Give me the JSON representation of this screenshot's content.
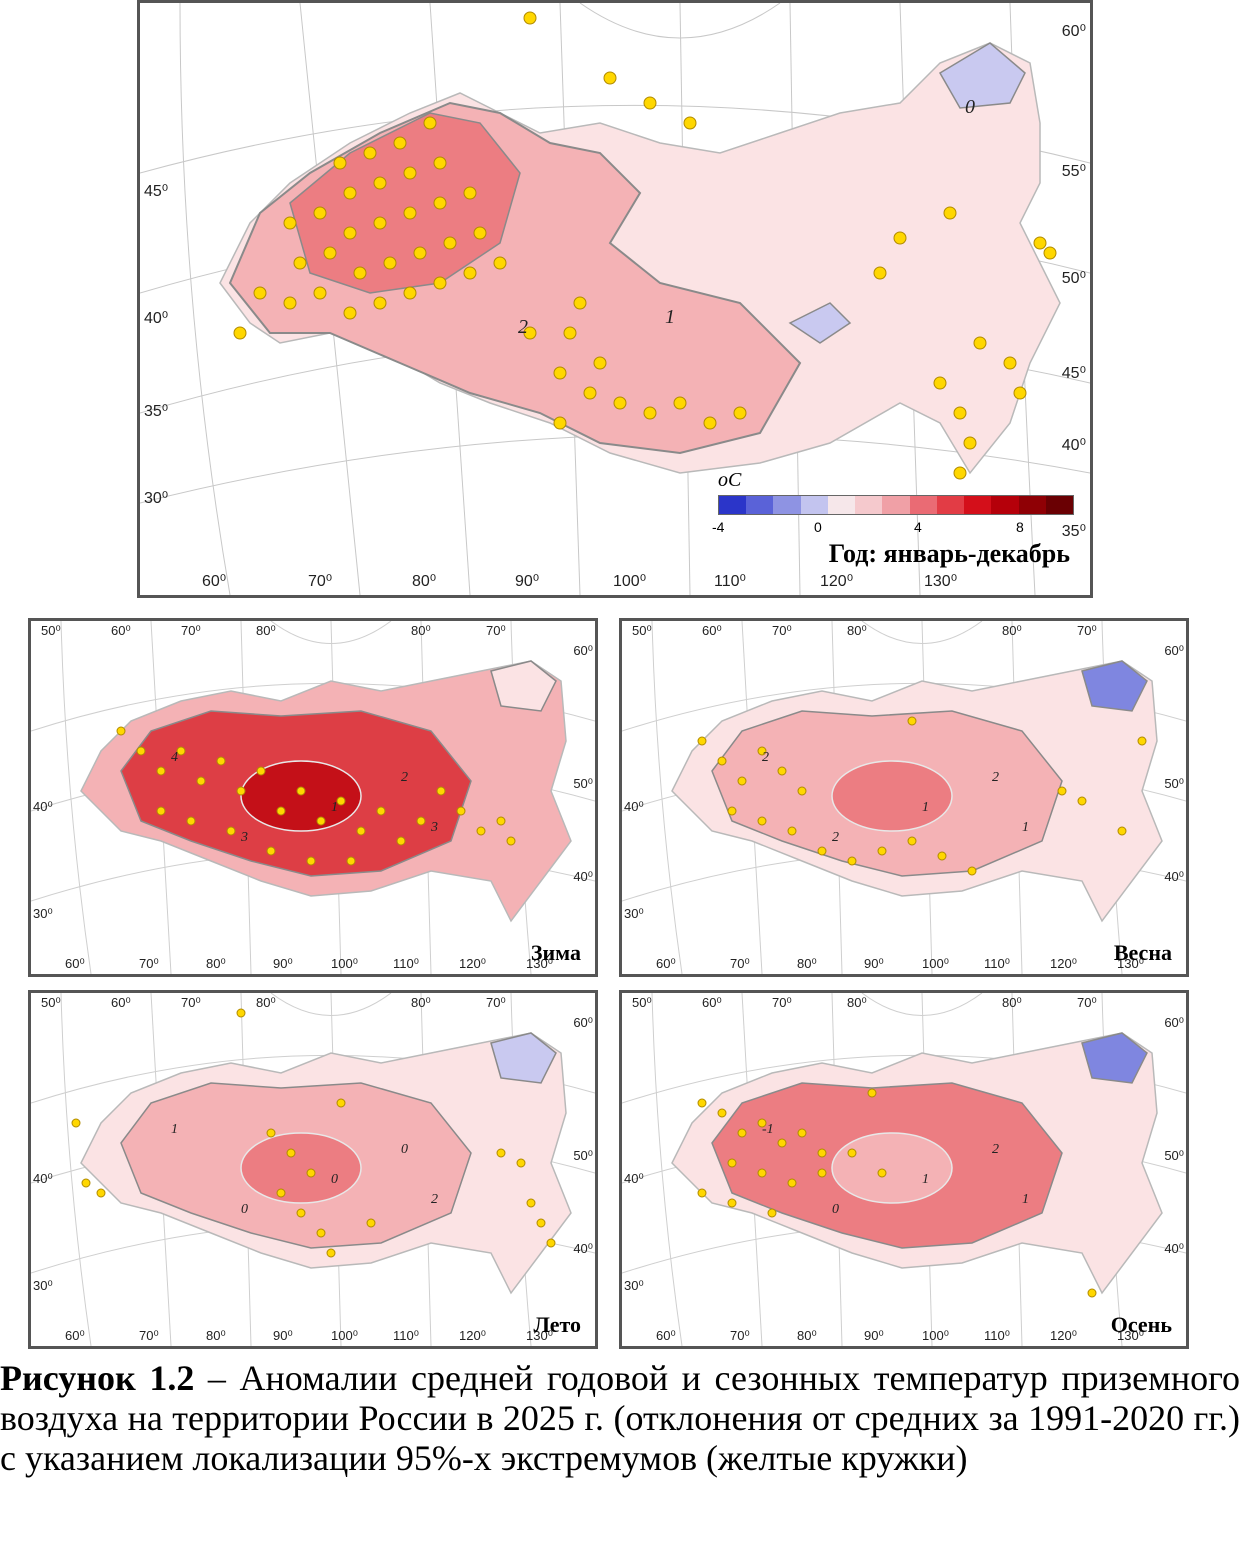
{
  "figure": {
    "caption_label": "Рисунок 1.2",
    "caption_text": " – Аномалии средней годовой и сезонных температур приземного воздуха на территории России в 2025 г. (отклонения от средних за 1991-2020 гг.) с указанием локализации 95%-х экстремумов (желтые кружки)"
  },
  "legend": {
    "unit": "оС",
    "labels": [
      "-4",
      "0",
      "4",
      "8"
    ],
    "colors": [
      "#2b35c9",
      "#5a62d8",
      "#8e93e3",
      "#c3c4ef",
      "#f6e7ea",
      "#f5c9cd",
      "#f0a0a6",
      "#ea6b74",
      "#e23c45",
      "#d40f1a",
      "#b5000a",
      "#8f0005",
      "#6a0003"
    ]
  },
  "colors": {
    "land_warm1": "#fbe3e4",
    "land_warm2": "#f4b2b5",
    "land_warm3": "#ec7d82",
    "land_warm4": "#dd3e45",
    "land_hot": "#c41018",
    "land_cold1": "#c9c9f0",
    "land_cold2": "#7f86e0",
    "land_cold3": "#3b44c8",
    "station": "#ffd700",
    "isoline": "#8a8a8a"
  },
  "panels": [
    {
      "id": "year",
      "title": "Год: январь-декабрь",
      "bottom_ticks": [
        "60⁰",
        "70⁰",
        "80⁰",
        "90⁰",
        "100⁰",
        "110⁰",
        "120⁰",
        "130⁰"
      ],
      "left_ticks": [
        "45⁰",
        "40⁰",
        "35⁰",
        "30⁰"
      ],
      "right_ticks": [
        "60⁰",
        "55⁰",
        "50⁰",
        "45⁰",
        "40⁰",
        "35⁰"
      ],
      "isolines": [
        "0",
        "1",
        "2"
      ]
    },
    {
      "id": "winter",
      "title": "Зима",
      "top_ticks": [
        "50⁰",
        "60⁰",
        "70⁰",
        "80⁰",
        "80⁰",
        "70⁰"
      ],
      "bottom_ticks": [
        "60⁰",
        "70⁰",
        "80⁰",
        "90⁰",
        "100⁰",
        "110⁰",
        "120⁰",
        "130⁰"
      ],
      "left_ticks": [
        "40⁰",
        "30⁰"
      ],
      "right_ticks": [
        "60⁰",
        "50⁰",
        "40⁰"
      ],
      "isolines": [
        "1",
        "2",
        "3",
        "4",
        "3"
      ]
    },
    {
      "id": "spring",
      "title": "Весна",
      "top_ticks": [
        "50⁰",
        "60⁰",
        "70⁰",
        "80⁰",
        "80⁰",
        "70⁰"
      ],
      "bottom_ticks": [
        "60⁰",
        "70⁰",
        "80⁰",
        "90⁰",
        "100⁰",
        "110⁰",
        "120⁰",
        "130⁰"
      ],
      "left_ticks": [
        "40⁰",
        "30⁰"
      ],
      "right_ticks": [
        "60⁰",
        "50⁰",
        "40⁰"
      ],
      "isolines": [
        "1",
        "2",
        "2",
        "2",
        "1"
      ]
    },
    {
      "id": "summer",
      "title": "Лето",
      "top_ticks": [
        "50⁰",
        "60⁰",
        "70⁰",
        "80⁰",
        "80⁰",
        "70⁰"
      ],
      "bottom_ticks": [
        "60⁰",
        "70⁰",
        "80⁰",
        "90⁰",
        "100⁰",
        "110⁰",
        "120⁰",
        "130⁰"
      ],
      "left_ticks": [
        "40⁰",
        "30⁰"
      ],
      "right_ticks": [
        "60⁰",
        "50⁰",
        "40⁰"
      ],
      "isolines": [
        "0",
        "0",
        "0",
        "1",
        "2"
      ]
    },
    {
      "id": "autumn",
      "title": "Осень",
      "top_ticks": [
        "50⁰",
        "60⁰",
        "70⁰",
        "80⁰",
        "80⁰",
        "70⁰"
      ],
      "bottom_ticks": [
        "60⁰",
        "70⁰",
        "80⁰",
        "90⁰",
        "100⁰",
        "110⁰",
        "120⁰",
        "130⁰"
      ],
      "left_ticks": [
        "40⁰",
        "30⁰"
      ],
      "right_ticks": [
        "60⁰",
        "50⁰",
        "40⁰"
      ],
      "isolines": [
        "1",
        "2",
        "0",
        "-1",
        "1"
      ]
    }
  ]
}
